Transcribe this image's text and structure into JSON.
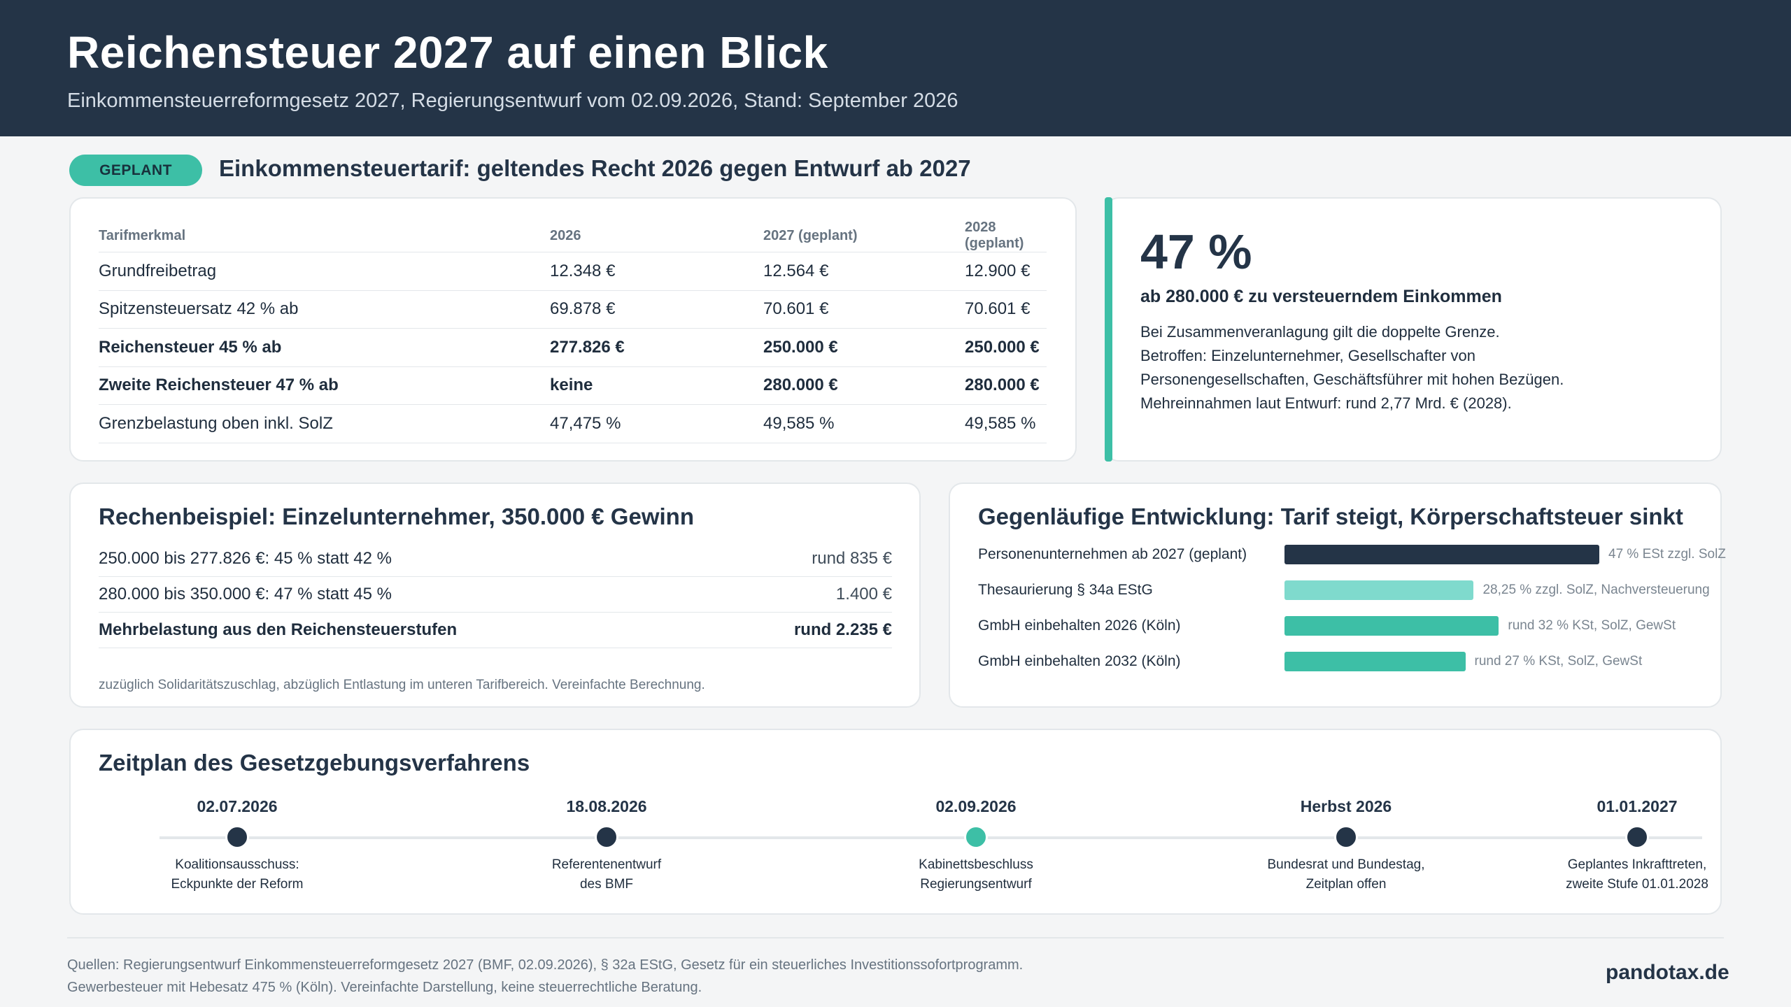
{
  "header": {
    "title": "Reichensteuer 2027 auf einen Blick",
    "subtitle": "Einkommensteuerreformgesetz 2027, Regierungsentwurf vom 02.09.2026, Stand: September 2026"
  },
  "section": {
    "badge": "GEPLANT",
    "title": "Einkommensteuertarif: geltendes Recht 2026 gegen Entwurf ab 2027"
  },
  "tariff_table": {
    "headers": [
      "Tarifmerkmal",
      "2026",
      "2027 (geplant)",
      "2028 (geplant)"
    ],
    "rows": [
      {
        "cells": [
          "Grundfreibetrag",
          "12.348 €",
          "12.564 €",
          "12.900 €"
        ],
        "bold": false
      },
      {
        "cells": [
          "Spitzensteuersatz 42 % ab",
          "69.878 €",
          "70.601 €",
          "70.601 €"
        ],
        "bold": false
      },
      {
        "cells": [
          "Reichensteuer 45 % ab",
          "277.826 €",
          "250.000 €",
          "250.000 €"
        ],
        "bold": true
      },
      {
        "cells": [
          "Zweite Reichensteuer 47 % ab",
          "keine",
          "280.000 €",
          "280.000 €"
        ],
        "bold": true
      },
      {
        "cells": [
          "Grenzbelastung oben inkl. SolZ",
          "47,475 %",
          "49,585 %",
          "49,585 %"
        ],
        "bold": false
      }
    ]
  },
  "highlight": {
    "accent_color": "#3dbfa6",
    "value": "47 %",
    "lead": "ab 280.000 € zu versteuerndem Einkommen",
    "lines": [
      "Bei Zusammenveranlagung gilt die doppelte Grenze.",
      "Betroffen: Einzelunternehmer, Gesellschafter von",
      "Personengesellschaften, Geschäftsführer mit hohen Bezügen.",
      "Mehreinnahmen laut Entwurf: rund 2,77 Mrd. € (2028)."
    ]
  },
  "calc": {
    "title": "Rechenbeispiel: Einzelunternehmer, 350.000 € Gewinn",
    "rows": [
      {
        "label": "250.000 bis 277.826 €: 45 % statt 42 %",
        "value": "rund 835 €",
        "bold": false
      },
      {
        "label": "280.000 bis 350.000 €: 47 % statt 45 %",
        "value": "1.400 €",
        "bold": false
      },
      {
        "label": "Mehrbelastung aus den Reichensteuerstufen",
        "value": "rund 2.235 €",
        "bold": true
      }
    ],
    "note": "zuzüglich Solidaritätszuschlag, abzüglich Entlastung im unteren Tarifbereich. Vereinfachte Berechnung."
  },
  "comparison": {
    "title": "Gegenläufige Entwicklung: Tarif steigt, Körperschaftsteuer sinkt",
    "rows": [
      {
        "label": "Personenunternehmen ab 2027 (geplant)",
        "value": 47,
        "note": "47 % ESt zzgl. SolZ",
        "color": "#243447"
      },
      {
        "label": "Thesaurierung § 34a EStG",
        "value": 28.25,
        "note": "28,25 % zzgl. SolZ, Nachversteuerung",
        "color": "#7fdacd"
      },
      {
        "label": "GmbH einbehalten 2026 (Köln)",
        "value": 32,
        "note": "rund 32 % KSt, SolZ, GewSt",
        "color": "#3dbfa6"
      },
      {
        "label": "GmbH einbehalten 2032 (Köln)",
        "value": 27,
        "note": "rund 27 % KSt, SolZ, GewSt",
        "color": "#3dbfa6"
      }
    ]
  },
  "timeline": {
    "title": "Zeitplan des Gesetzgebungsverfahrens",
    "milestones": [
      {
        "date": "02.07.2026",
        "line1": "Koalitionsausschuss:",
        "line2": "Eckpunkte der Reform",
        "active": false
      },
      {
        "date": "18.08.2026",
        "line1": "Referentenentwurf",
        "line2": "des BMF",
        "active": false
      },
      {
        "date": "02.09.2026",
        "line1": "Kabinettsbeschluss",
        "line2": "Regierungsentwurf",
        "active": true
      },
      {
        "date": "Herbst 2026",
        "line1": "Bundesrat und Bundestag,",
        "line2": "Zeitplan offen",
        "active": false
      },
      {
        "date": "01.01.2027",
        "line1": "Geplantes Inkrafttreten,",
        "line2": "zweite Stufe 01.01.2028",
        "active": false
      }
    ]
  },
  "footer": {
    "sources_line1": "Quellen: Regierungsentwurf Einkommensteuerreformgesetz 2027 (BMF, 02.09.2026), § 32a EStG, Gesetz für ein steuerliches Investitionssofortprogramm.",
    "sources_line2": "Gewerbesteuer mit Hebesatz 475 % (Köln). Vereinfachte Darstellung, keine steuerrechtliche Beratung.",
    "brand": "pandotax.de"
  }
}
